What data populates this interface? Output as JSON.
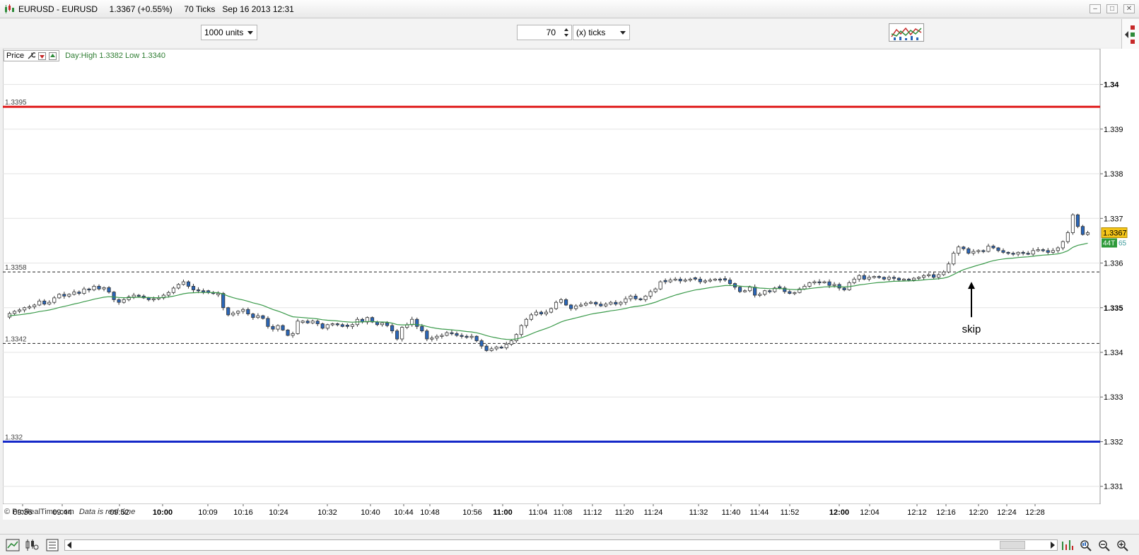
{
  "window": {
    "title": "EURUSD - EURUSD     1.3367 (+0.55%)     70 Ticks   Sep 16 2013 12:31",
    "minimize": "–",
    "restore": "□",
    "close": "✕"
  },
  "toolbar": {
    "units_select": "1000 units",
    "ticks_value": "70",
    "ticks_unit_select": "(x) ticks"
  },
  "price_panel": {
    "label": "Price",
    "day_info": "Day:High 1.3382 Low 1.3340"
  },
  "footer": {
    "copyright": "© ProRealTime.com",
    "realtime_note": "Data is real time"
  },
  "chart_data": {
    "type": "candlestick",
    "y_range": [
      1.3306,
      1.3408
    ],
    "y_ticks": [
      "1.34",
      "1.339",
      "1.338",
      "1.337",
      "1.336",
      "1.335",
      "1.334",
      "1.333",
      "1.332",
      "1.331"
    ],
    "y_ticks_bold": [
      "1.34",
      "1.335"
    ],
    "x_ticks": [
      {
        "label": "09:36",
        "bold": false
      },
      {
        "label": "09:44",
        "bold": false
      },
      {
        "label": "09:52",
        "bold": false
      },
      {
        "label": "10:00",
        "bold": true
      },
      {
        "label": "10:09",
        "bold": false
      },
      {
        "label": "10:16",
        "bold": false
      },
      {
        "label": "10:24",
        "bold": false
      },
      {
        "label": "10:32",
        "bold": false
      },
      {
        "label": "10:40",
        "bold": false
      },
      {
        "label": "10:44",
        "bold": false
      },
      {
        "label": "10:48",
        "bold": false
      },
      {
        "label": "10:56",
        "bold": false
      },
      {
        "label": "11:00",
        "bold": true
      },
      {
        "label": "11:04",
        "bold": false
      },
      {
        "label": "11:08",
        "bold": false
      },
      {
        "label": "11:12",
        "bold": false
      },
      {
        "label": "11:20",
        "bold": false
      },
      {
        "label": "11:24",
        "bold": false
      },
      {
        "label": "11:32",
        "bold": false
      },
      {
        "label": "11:40",
        "bold": false
      },
      {
        "label": "11:44",
        "bold": false
      },
      {
        "label": "11:52",
        "bold": false
      },
      {
        "label": "12:00",
        "bold": true
      },
      {
        "label": "12:04",
        "bold": false
      },
      {
        "label": "12:12",
        "bold": false
      },
      {
        "label": "12:16",
        "bold": false
      },
      {
        "label": "12:20",
        "bold": false
      },
      {
        "label": "12:24",
        "bold": false
      },
      {
        "label": "12:28",
        "bold": false
      }
    ],
    "horizontal_lines": [
      {
        "value": 1.3395,
        "label": "1.3395",
        "color": "#e01e1e",
        "style": "solid"
      },
      {
        "value": 1.3358,
        "label": "1.3358",
        "color": "#222222",
        "style": "dashed"
      },
      {
        "value": 1.3342,
        "label": "1.3342",
        "color": "#222222",
        "style": "dashed"
      },
      {
        "value": 1.332,
        "label": "1.332",
        "color": "#1428c8",
        "style": "solid"
      }
    ],
    "last_price_label": "1.3367",
    "countdown_label": "44T",
    "ma_value_label": "65",
    "annotation": {
      "text": "skip",
      "target_price": 1.3358
    },
    "bull_color": "#ffffff",
    "bear_color": "#2a66b8",
    "ma_color": "#3a9a4a",
    "candle_closes": [
      1.33487,
      1.33492,
      1.33495,
      1.335,
      1.33502,
      1.33506,
      1.33515,
      1.33508,
      1.33512,
      1.33522,
      1.3353,
      1.33526,
      1.3353,
      1.33535,
      1.33532,
      1.33542,
      1.3354,
      1.33548,
      1.33542,
      1.33545,
      1.33535,
      1.33518,
      1.33512,
      1.33518,
      1.33524,
      1.33528,
      1.33526,
      1.33522,
      1.33518,
      1.3352,
      1.33522,
      1.33528,
      1.33534,
      1.33544,
      1.33552,
      1.33558,
      1.33548,
      1.3354,
      1.33538,
      1.33535,
      1.33534,
      1.33532,
      1.33532,
      1.335,
      1.33484,
      1.33488,
      1.33492,
      1.33496,
      1.33486,
      1.33478,
      1.33482,
      1.33476,
      1.33458,
      1.33452,
      1.3346,
      1.3345,
      1.33438,
      1.33442,
      1.3347,
      1.3347,
      1.33466,
      1.3347,
      1.33464,
      1.33454,
      1.33462,
      1.33464,
      1.33462,
      1.33458,
      1.33458,
      1.33462,
      1.33474,
      1.33468,
      1.33478,
      1.33468,
      1.33462,
      1.33466,
      1.3346,
      1.33448,
      1.3343,
      1.33456,
      1.33462,
      1.33474,
      1.33458,
      1.33448,
      1.3343,
      1.33432,
      1.33436,
      1.33438,
      1.33444,
      1.33442,
      1.33438,
      1.33436,
      1.33434,
      1.33436,
      1.33426,
      1.33414,
      1.33404,
      1.33408,
      1.33412,
      1.3341,
      1.33418,
      1.33426,
      1.3344,
      1.3346,
      1.33474,
      1.33484,
      1.3349,
      1.33486,
      1.3349,
      1.33498,
      1.33512,
      1.33518,
      1.33506,
      1.33498,
      1.33504,
      1.33506,
      1.3351,
      1.33512,
      1.33508,
      1.33504,
      1.33508,
      1.33512,
      1.33508,
      1.33512,
      1.3352,
      1.33526,
      1.3352,
      1.33518,
      1.33526,
      1.33536,
      1.33542,
      1.33558,
      1.33558,
      1.33562,
      1.33564,
      1.3356,
      1.33562,
      1.33564,
      1.33564,
      1.33558,
      1.3356,
      1.33562,
      1.33564,
      1.33562,
      1.33562,
      1.33554,
      1.33546,
      1.33536,
      1.33538,
      1.33546,
      1.33528,
      1.3353,
      1.33538,
      1.33536,
      1.33544,
      1.33544,
      1.33536,
      1.33532,
      1.33534,
      1.33542,
      1.33548,
      1.33556,
      1.33558,
      1.33556,
      1.33558,
      1.3355,
      1.33552,
      1.33544,
      1.3354,
      1.33556,
      1.33564,
      1.33572,
      1.33564,
      1.33568,
      1.3357,
      1.33568,
      1.33564,
      1.33568,
      1.33566,
      1.33562,
      1.33564,
      1.33562,
      1.33566,
      1.33568,
      1.33572,
      1.33574,
      1.33568,
      1.33574,
      1.3358,
      1.33598,
      1.33622,
      1.33636,
      1.33632,
      1.33622,
      1.33626,
      1.33628,
      1.33626,
      1.33638,
      1.33634,
      1.33628,
      1.33624,
      1.33622,
      1.3362,
      1.33624,
      1.33622,
      1.3362,
      1.33628,
      1.3363,
      1.33628,
      1.33624,
      1.33628,
      1.33634,
      1.33648,
      1.33668,
      1.33708,
      1.33682,
      1.33664,
      1.33668
    ]
  }
}
